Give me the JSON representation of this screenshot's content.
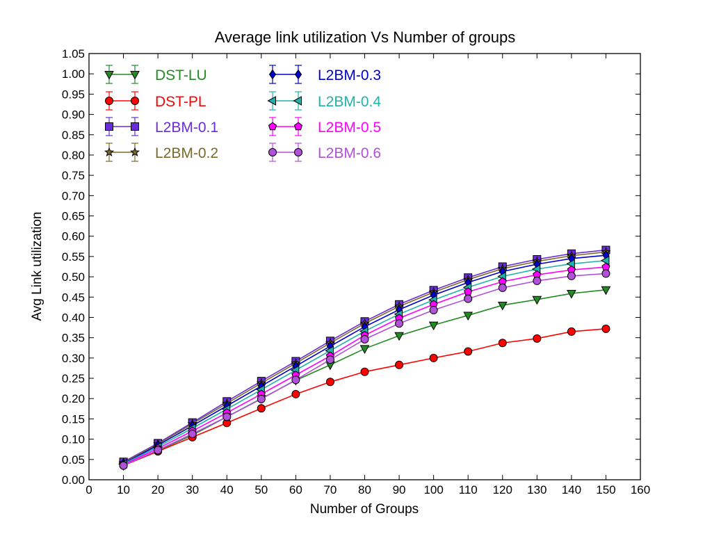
{
  "chart_data": {
    "type": "line",
    "title": "Average link utilization Vs Number of groups",
    "xlabel": "Number of Groups",
    "ylabel": "Avg Link utilization",
    "xlim": [
      0,
      160
    ],
    "ylim": [
      0,
      1.05
    ],
    "xticks": [
      0,
      10,
      20,
      30,
      40,
      50,
      60,
      70,
      80,
      90,
      100,
      110,
      120,
      130,
      140,
      150,
      160
    ],
    "yticks": [
      0.0,
      0.05,
      0.1,
      0.15,
      0.2,
      0.25,
      0.3,
      0.35,
      0.4,
      0.45,
      0.5,
      0.55,
      0.6,
      0.65,
      0.7,
      0.75,
      0.8,
      0.85,
      0.9,
      0.95,
      1.0,
      1.05
    ],
    "grid": false,
    "legend_position": "top-left",
    "x": [
      10,
      20,
      30,
      40,
      50,
      60,
      70,
      80,
      90,
      100,
      110,
      120,
      130,
      140,
      150
    ],
    "series": [
      {
        "name": "DST-LU",
        "color": "#228b22",
        "marker": "triangle-down",
        "values": [
          0.035,
          0.072,
          0.11,
          0.155,
          0.2,
          0.245,
          0.283,
          0.323,
          0.355,
          0.381,
          0.405,
          0.43,
          0.444,
          0.459,
          0.468
        ]
      },
      {
        "name": "DST-PL",
        "color": "#ff0000",
        "marker": "circle",
        "values": [
          0.035,
          0.07,
          0.105,
          0.14,
          0.176,
          0.211,
          0.241,
          0.266,
          0.283,
          0.3,
          0.316,
          0.337,
          0.348,
          0.365,
          0.372
        ]
      },
      {
        "name": "L2BM-0.1",
        "color": "#6a2bd9",
        "marker": "square",
        "values": [
          0.044,
          0.09,
          0.141,
          0.193,
          0.243,
          0.292,
          0.342,
          0.39,
          0.432,
          0.467,
          0.498,
          0.525,
          0.543,
          0.557,
          0.566
        ]
      },
      {
        "name": "L2BM-0.2",
        "color": "#7a6a2a",
        "marker": "star",
        "values": [
          0.042,
          0.088,
          0.138,
          0.188,
          0.238,
          0.287,
          0.337,
          0.385,
          0.427,
          0.462,
          0.493,
          0.52,
          0.538,
          0.552,
          0.561
        ]
      },
      {
        "name": "L2BM-0.3",
        "color": "#0000cd",
        "marker": "diamond",
        "values": [
          0.04,
          0.085,
          0.133,
          0.182,
          0.231,
          0.28,
          0.329,
          0.377,
          0.419,
          0.455,
          0.486,
          0.513,
          0.531,
          0.545,
          0.553
        ]
      },
      {
        "name": "L2BM-0.4",
        "color": "#20b2aa",
        "marker": "triangle-left",
        "values": [
          0.039,
          0.081,
          0.127,
          0.174,
          0.222,
          0.27,
          0.318,
          0.366,
          0.408,
          0.443,
          0.474,
          0.501,
          0.519,
          0.532,
          0.54
        ]
      },
      {
        "name": "L2BM-0.5",
        "color": "#ff00ff",
        "marker": "pentagon",
        "values": [
          0.037,
          0.077,
          0.12,
          0.165,
          0.211,
          0.258,
          0.305,
          0.356,
          0.398,
          0.432,
          0.463,
          0.488,
          0.505,
          0.517,
          0.524
        ]
      },
      {
        "name": "L2BM-0.6",
        "color": "#b150d8",
        "marker": "circle",
        "values": [
          0.035,
          0.073,
          0.113,
          0.155,
          0.199,
          0.246,
          0.296,
          0.346,
          0.385,
          0.418,
          0.446,
          0.473,
          0.49,
          0.502,
          0.508
        ]
      }
    ]
  }
}
